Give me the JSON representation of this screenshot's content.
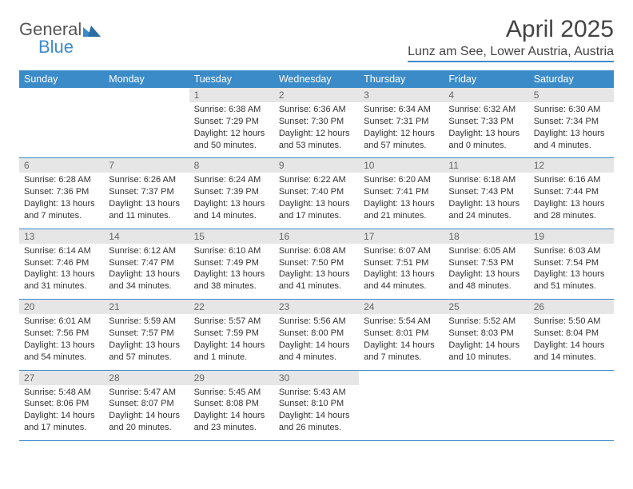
{
  "logo": {
    "general": "General",
    "blue": "Blue"
  },
  "title": "April 2025",
  "location": "Lunz am See, Lower Austria, Austria",
  "day_headers": [
    "Sunday",
    "Monday",
    "Tuesday",
    "Wednesday",
    "Thursday",
    "Friday",
    "Saturday"
  ],
  "colors": {
    "accent": "#3b8bc9",
    "daynum_bg": "#e6e6e6",
    "text": "#333333"
  },
  "weeks": [
    [
      {
        "n": "",
        "sr": "",
        "ss": "",
        "dl": ""
      },
      {
        "n": "",
        "sr": "",
        "ss": "",
        "dl": ""
      },
      {
        "n": "1",
        "sr": "Sunrise: 6:38 AM",
        "ss": "Sunset: 7:29 PM",
        "dl": "Daylight: 12 hours and 50 minutes."
      },
      {
        "n": "2",
        "sr": "Sunrise: 6:36 AM",
        "ss": "Sunset: 7:30 PM",
        "dl": "Daylight: 12 hours and 53 minutes."
      },
      {
        "n": "3",
        "sr": "Sunrise: 6:34 AM",
        "ss": "Sunset: 7:31 PM",
        "dl": "Daylight: 12 hours and 57 minutes."
      },
      {
        "n": "4",
        "sr": "Sunrise: 6:32 AM",
        "ss": "Sunset: 7:33 PM",
        "dl": "Daylight: 13 hours and 0 minutes."
      },
      {
        "n": "5",
        "sr": "Sunrise: 6:30 AM",
        "ss": "Sunset: 7:34 PM",
        "dl": "Daylight: 13 hours and 4 minutes."
      }
    ],
    [
      {
        "n": "6",
        "sr": "Sunrise: 6:28 AM",
        "ss": "Sunset: 7:36 PM",
        "dl": "Daylight: 13 hours and 7 minutes."
      },
      {
        "n": "7",
        "sr": "Sunrise: 6:26 AM",
        "ss": "Sunset: 7:37 PM",
        "dl": "Daylight: 13 hours and 11 minutes."
      },
      {
        "n": "8",
        "sr": "Sunrise: 6:24 AM",
        "ss": "Sunset: 7:39 PM",
        "dl": "Daylight: 13 hours and 14 minutes."
      },
      {
        "n": "9",
        "sr": "Sunrise: 6:22 AM",
        "ss": "Sunset: 7:40 PM",
        "dl": "Daylight: 13 hours and 17 minutes."
      },
      {
        "n": "10",
        "sr": "Sunrise: 6:20 AM",
        "ss": "Sunset: 7:41 PM",
        "dl": "Daylight: 13 hours and 21 minutes."
      },
      {
        "n": "11",
        "sr": "Sunrise: 6:18 AM",
        "ss": "Sunset: 7:43 PM",
        "dl": "Daylight: 13 hours and 24 minutes."
      },
      {
        "n": "12",
        "sr": "Sunrise: 6:16 AM",
        "ss": "Sunset: 7:44 PM",
        "dl": "Daylight: 13 hours and 28 minutes."
      }
    ],
    [
      {
        "n": "13",
        "sr": "Sunrise: 6:14 AM",
        "ss": "Sunset: 7:46 PM",
        "dl": "Daylight: 13 hours and 31 minutes."
      },
      {
        "n": "14",
        "sr": "Sunrise: 6:12 AM",
        "ss": "Sunset: 7:47 PM",
        "dl": "Daylight: 13 hours and 34 minutes."
      },
      {
        "n": "15",
        "sr": "Sunrise: 6:10 AM",
        "ss": "Sunset: 7:49 PM",
        "dl": "Daylight: 13 hours and 38 minutes."
      },
      {
        "n": "16",
        "sr": "Sunrise: 6:08 AM",
        "ss": "Sunset: 7:50 PM",
        "dl": "Daylight: 13 hours and 41 minutes."
      },
      {
        "n": "17",
        "sr": "Sunrise: 6:07 AM",
        "ss": "Sunset: 7:51 PM",
        "dl": "Daylight: 13 hours and 44 minutes."
      },
      {
        "n": "18",
        "sr": "Sunrise: 6:05 AM",
        "ss": "Sunset: 7:53 PM",
        "dl": "Daylight: 13 hours and 48 minutes."
      },
      {
        "n": "19",
        "sr": "Sunrise: 6:03 AM",
        "ss": "Sunset: 7:54 PM",
        "dl": "Daylight: 13 hours and 51 minutes."
      }
    ],
    [
      {
        "n": "20",
        "sr": "Sunrise: 6:01 AM",
        "ss": "Sunset: 7:56 PM",
        "dl": "Daylight: 13 hours and 54 minutes."
      },
      {
        "n": "21",
        "sr": "Sunrise: 5:59 AM",
        "ss": "Sunset: 7:57 PM",
        "dl": "Daylight: 13 hours and 57 minutes."
      },
      {
        "n": "22",
        "sr": "Sunrise: 5:57 AM",
        "ss": "Sunset: 7:59 PM",
        "dl": "Daylight: 14 hours and 1 minute."
      },
      {
        "n": "23",
        "sr": "Sunrise: 5:56 AM",
        "ss": "Sunset: 8:00 PM",
        "dl": "Daylight: 14 hours and 4 minutes."
      },
      {
        "n": "24",
        "sr": "Sunrise: 5:54 AM",
        "ss": "Sunset: 8:01 PM",
        "dl": "Daylight: 14 hours and 7 minutes."
      },
      {
        "n": "25",
        "sr": "Sunrise: 5:52 AM",
        "ss": "Sunset: 8:03 PM",
        "dl": "Daylight: 14 hours and 10 minutes."
      },
      {
        "n": "26",
        "sr": "Sunrise: 5:50 AM",
        "ss": "Sunset: 8:04 PM",
        "dl": "Daylight: 14 hours and 14 minutes."
      }
    ],
    [
      {
        "n": "27",
        "sr": "Sunrise: 5:48 AM",
        "ss": "Sunset: 8:06 PM",
        "dl": "Daylight: 14 hours and 17 minutes."
      },
      {
        "n": "28",
        "sr": "Sunrise: 5:47 AM",
        "ss": "Sunset: 8:07 PM",
        "dl": "Daylight: 14 hours and 20 minutes."
      },
      {
        "n": "29",
        "sr": "Sunrise: 5:45 AM",
        "ss": "Sunset: 8:08 PM",
        "dl": "Daylight: 14 hours and 23 minutes."
      },
      {
        "n": "30",
        "sr": "Sunrise: 5:43 AM",
        "ss": "Sunset: 8:10 PM",
        "dl": "Daylight: 14 hours and 26 minutes."
      },
      {
        "n": "",
        "sr": "",
        "ss": "",
        "dl": ""
      },
      {
        "n": "",
        "sr": "",
        "ss": "",
        "dl": ""
      },
      {
        "n": "",
        "sr": "",
        "ss": "",
        "dl": ""
      }
    ]
  ]
}
